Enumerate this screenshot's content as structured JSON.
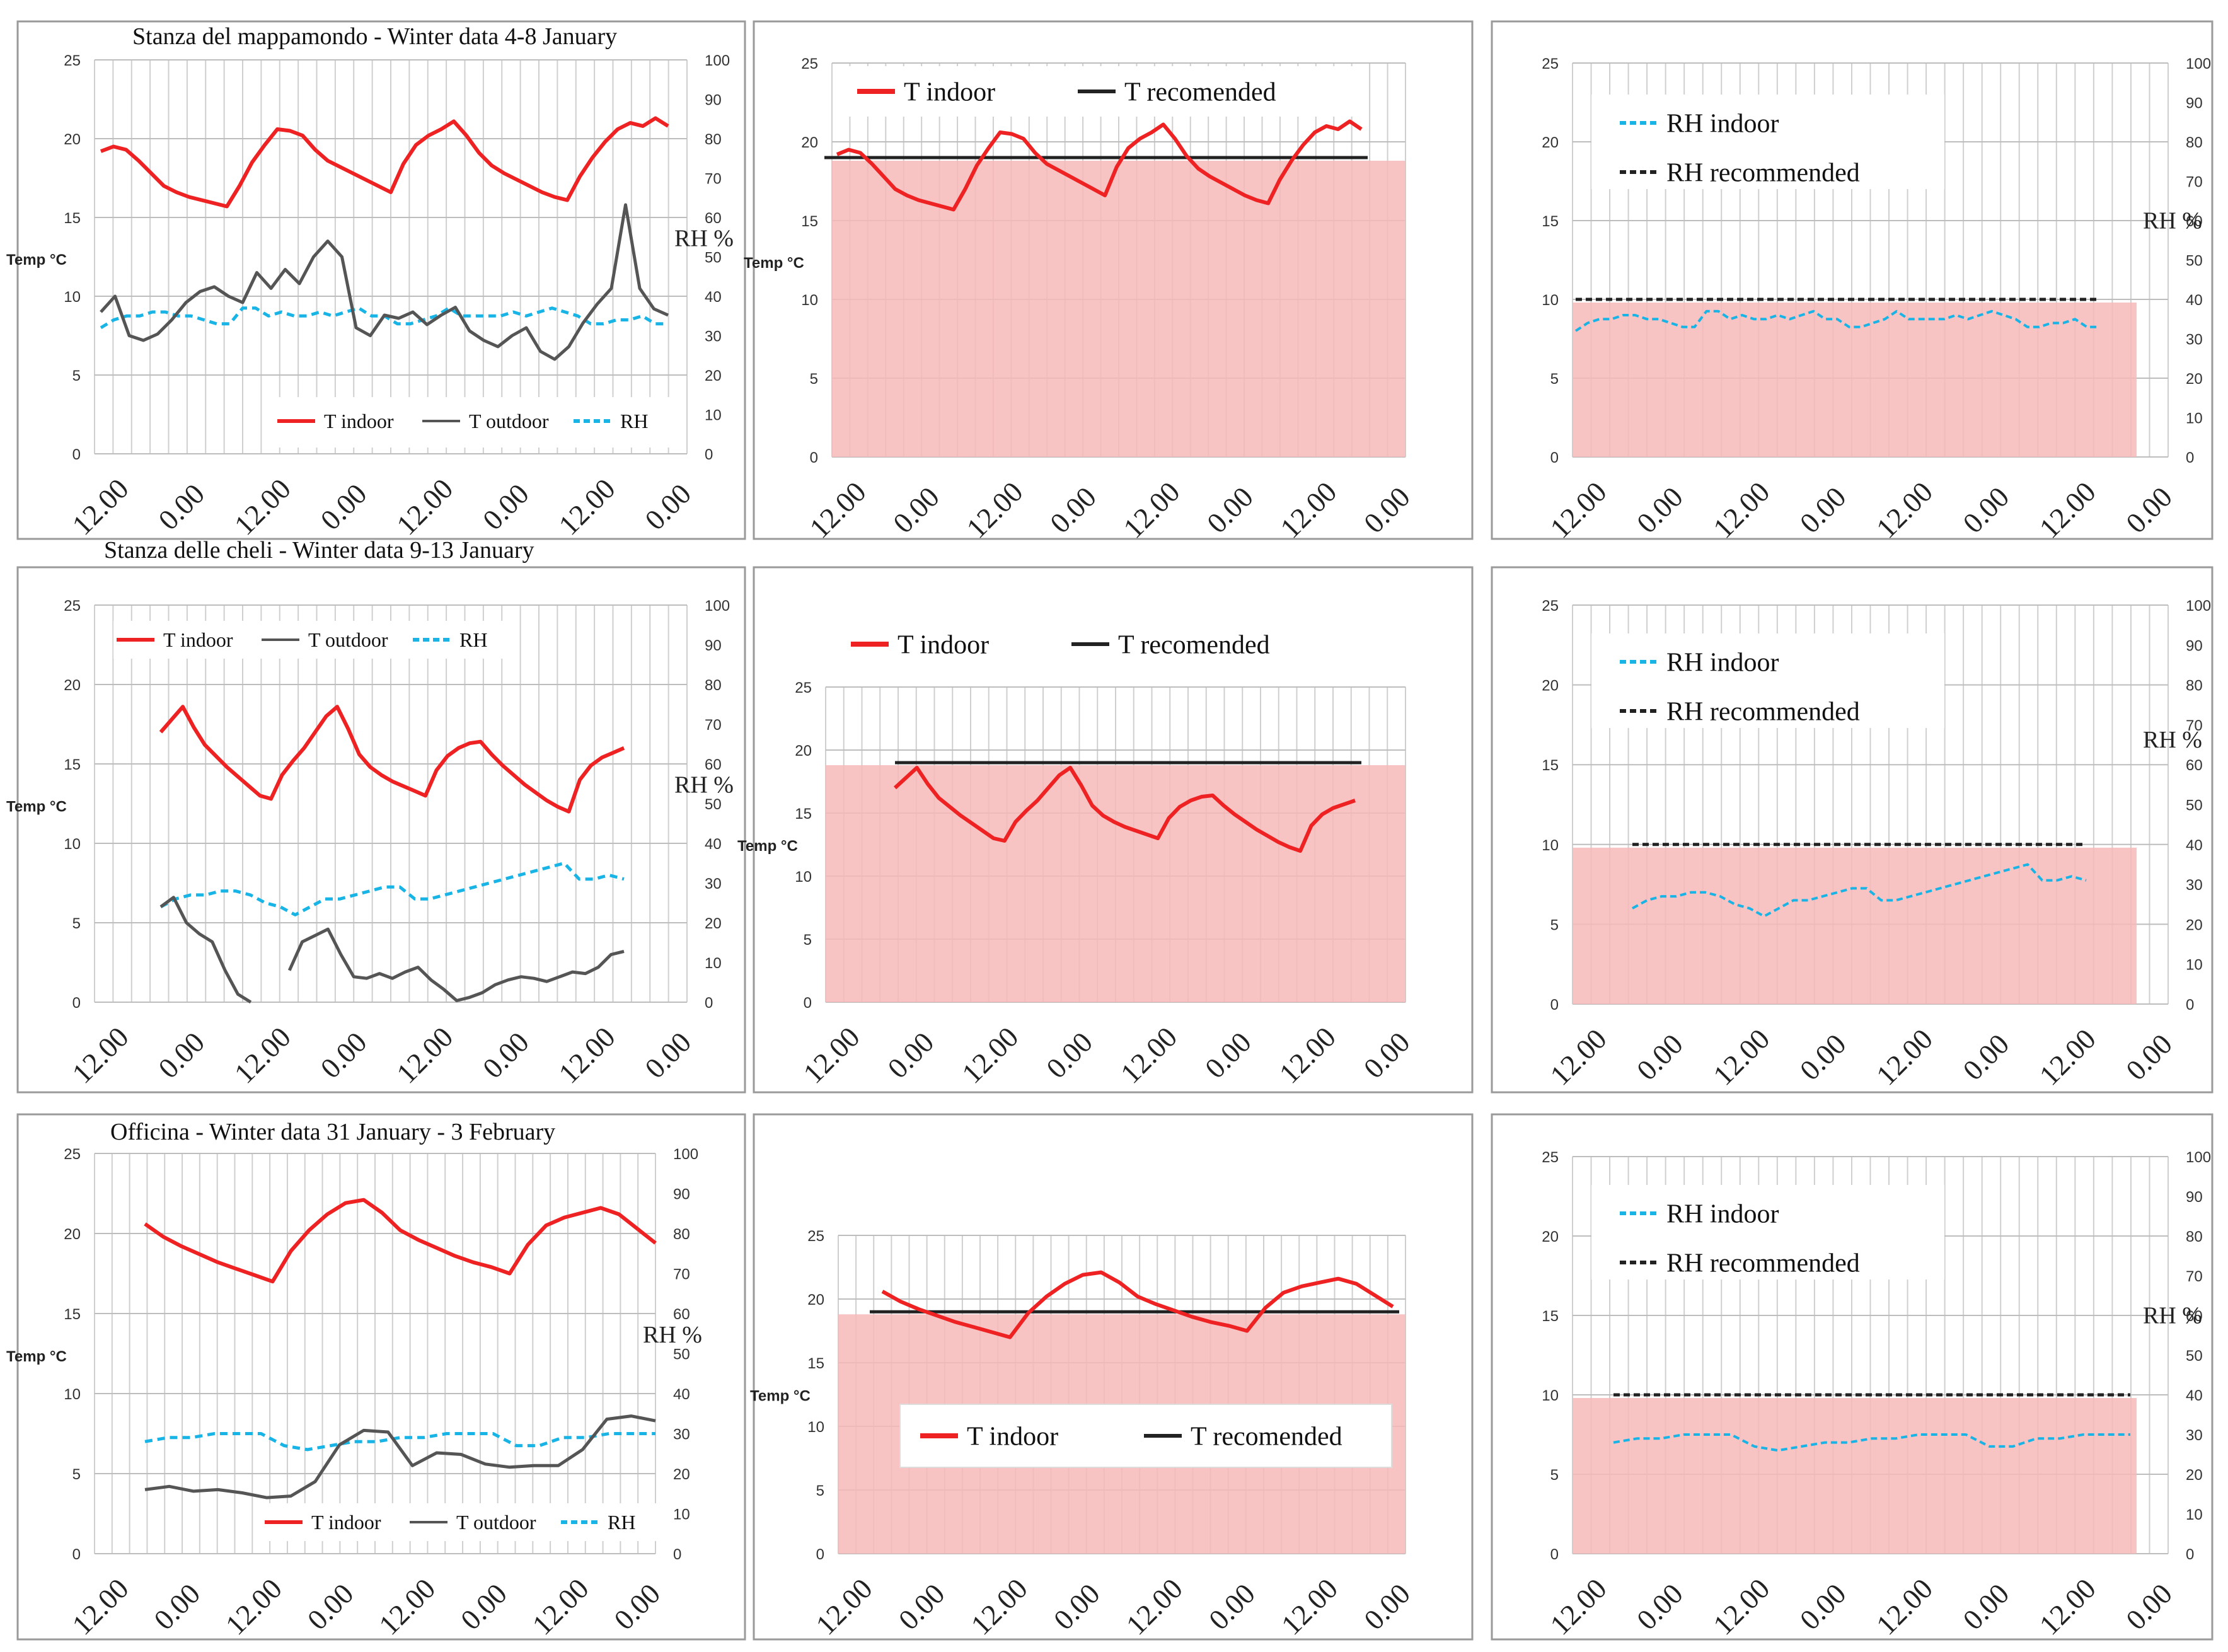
{
  "figure": {
    "colors": {
      "t_indoor": "#ee2222",
      "t_outdoor": "#555555",
      "rh": "#18b4e6",
      "recommended": "#222222",
      "comfort_band": "#f7b8b8",
      "grid": "#cfcfcf"
    }
  },
  "rows": [
    {
      "title": "Stanza del mappamondo - Winter data 4-8 January",
      "xticks": [
        "12.00",
        "0.00",
        "12.00",
        "0.00",
        "12.00",
        "0.00",
        "12.00",
        "0.00"
      ],
      "t_indoor": [
        19.2,
        19.5,
        19.3,
        18.6,
        17.8,
        17.0,
        16.6,
        16.3,
        16.1,
        15.9,
        15.7,
        17.0,
        18.5,
        19.6,
        20.6,
        20.5,
        20.2,
        19.3,
        18.6,
        18.2,
        17.8,
        17.4,
        17.0,
        16.6,
        18.4,
        19.6,
        20.2,
        20.6,
        21.1,
        20.2,
        19.1,
        18.3,
        17.8,
        17.4,
        17.0,
        16.6,
        16.3,
        16.1,
        17.6,
        18.8,
        19.8,
        20.6,
        21.0,
        20.8,
        21.3,
        20.8
      ],
      "t_outdoor": [
        9.0,
        10.0,
        7.5,
        7.2,
        7.6,
        8.5,
        9.6,
        10.3,
        10.6,
        10.0,
        9.6,
        11.5,
        10.5,
        11.7,
        10.8,
        12.5,
        13.5,
        12.5,
        8.0,
        7.5,
        8.8,
        8.6,
        9.0,
        8.2,
        8.8,
        9.3,
        7.8,
        7.2,
        6.8,
        7.5,
        8.0,
        6.5,
        6.0,
        6.8,
        8.3,
        9.5,
        10.5,
        15.8,
        10.5,
        9.2,
        8.8
      ],
      "rh": [
        32,
        34,
        35,
        35,
        36,
        36,
        35,
        35,
        34,
        33,
        33,
        37,
        37,
        35,
        36,
        35,
        35,
        36,
        35,
        36,
        37,
        35,
        35,
        33,
        33,
        34,
        35,
        37,
        35,
        35,
        35,
        35,
        36,
        35,
        36,
        37,
        36,
        35,
        33,
        33,
        34,
        34,
        35,
        33,
        33
      ]
    },
    {
      "title": "Stanza delle cheli - Winter data 9-13 January",
      "xticks": [
        "12.00",
        "0.00",
        "12.00",
        "0.00",
        "12.00",
        "0.00",
        "12.00",
        "0.00"
      ],
      "t_indoor": [
        17.0,
        17.8,
        18.6,
        17.3,
        16.2,
        15.5,
        14.8,
        14.2,
        13.6,
        13.0,
        12.8,
        14.3,
        15.2,
        16.0,
        17.0,
        18.0,
        18.6,
        17.2,
        15.6,
        14.8,
        14.3,
        13.9,
        13.6,
        13.3,
        13.0,
        14.6,
        15.5,
        16.0,
        16.3,
        16.4,
        15.6,
        14.9,
        14.3,
        13.7,
        13.2,
        12.7,
        12.3,
        12.0,
        14.0,
        14.9,
        15.4,
        15.7,
        16.0
      ],
      "t_outdoor": [
        6.0,
        6.6,
        5.0,
        4.3,
        3.8,
        2.0,
        0.5,
        -0.6,
        null,
        null,
        2.0,
        3.8,
        4.2,
        4.6,
        3.0,
        1.6,
        1.5,
        1.8,
        1.5,
        1.9,
        2.2,
        1.4,
        0.8,
        0.1,
        0.3,
        0.6,
        1.1,
        1.4,
        1.6,
        1.5,
        1.3,
        1.6,
        1.9,
        1.8,
        2.2,
        3.0,
        3.2
      ],
      "rh": [
        24,
        26,
        27,
        27,
        28,
        28,
        27,
        25,
        24,
        22,
        24,
        26,
        26,
        27,
        28,
        29,
        29,
        26,
        26,
        27,
        28,
        29,
        30,
        31,
        32,
        33,
        34,
        35,
        31,
        31,
        32,
        31
      ]
    },
    {
      "title": "Officina - Winter data 31 January - 3 February",
      "xticks": [
        "12.00",
        "0.00",
        "12.00",
        "0.00",
        "12.00",
        "0.00",
        "12.00",
        "0.00"
      ],
      "t_indoor": [
        20.6,
        19.8,
        19.2,
        18.7,
        18.2,
        17.8,
        17.4,
        17.0,
        18.9,
        20.2,
        21.2,
        21.9,
        22.1,
        21.3,
        20.2,
        19.6,
        19.1,
        18.6,
        18.2,
        17.9,
        17.5,
        19.3,
        20.5,
        21.0,
        21.3,
        21.6,
        21.2,
        20.3,
        19.4
      ],
      "t_outdoor": [
        4.0,
        4.2,
        3.9,
        4.0,
        3.8,
        3.5,
        3.6,
        4.5,
        6.8,
        7.7,
        7.6,
        5.5,
        6.3,
        6.2,
        5.6,
        5.4,
        5.5,
        5.5,
        6.5,
        8.4,
        8.6,
        8.3
      ],
      "rh": [
        28,
        29,
        29,
        30,
        30,
        30,
        27,
        26,
        27,
        28,
        28,
        29,
        29,
        30,
        30,
        30,
        27,
        27,
        29,
        29,
        30,
        30,
        30
      ]
    }
  ],
  "middle_panel": {
    "legend_t_indoor": "T indoor",
    "legend_t_recommended": "T recomended",
    "t_recommended": 19
  },
  "right_panel": {
    "legend_rh_indoor": "RH indoor",
    "legend_rh_recommended": "RH recommended",
    "rh_recommended": 40
  },
  "left_panel": {
    "legend_t_indoor": "T indoor",
    "legend_t_outdoor": "T outdoor",
    "legend_rh": "RH"
  },
  "axes": {
    "y_left_label": "Temp °C",
    "y_right_label": "RH %",
    "y_left_ticks": [
      "0",
      "5",
      "10",
      "15",
      "20",
      "25"
    ],
    "y_right_ticks": [
      "0",
      "10",
      "20",
      "30",
      "40",
      "50",
      "60",
      "70",
      "80",
      "90",
      "100"
    ],
    "y_left_range": [
      0,
      25
    ],
    "y_right_range": [
      0,
      100
    ]
  },
  "chart_data": [
    {
      "type": "line",
      "title": "Stanza del mappamondo - Winter data 4-8 January",
      "ylabel": "Temp °C",
      "y2label": "RH %",
      "ylim": [
        0,
        25
      ],
      "y2lim": [
        0,
        100
      ],
      "series": [
        "T indoor",
        "T outdoor",
        "RH"
      ],
      "legend": "bottom-right",
      "grid": true
    },
    {
      "type": "line",
      "ylim": [
        0,
        25
      ],
      "series": [
        "T indoor",
        "T recomended"
      ],
      "t_recommended": 19,
      "legend": "top-left",
      "grid": true
    },
    {
      "type": "line",
      "ylim": [
        0,
        25
      ],
      "y2lim": [
        0,
        100
      ],
      "series": [
        "RH indoor",
        "RH recommended"
      ],
      "rh_recommended": 40,
      "legend": "top-left",
      "grid": true
    },
    {
      "type": "line",
      "title": "Stanza delle cheli - Winter data 9-13 January",
      "ylim": [
        0,
        25
      ],
      "y2lim": [
        0,
        100
      ],
      "series": [
        "T indoor",
        "T outdoor",
        "RH"
      ],
      "legend": "top-left",
      "grid": true
    },
    {
      "type": "line",
      "ylim": [
        0,
        25
      ],
      "series": [
        "T indoor",
        "T recomended"
      ],
      "t_recommended": 19,
      "legend": "top-left",
      "grid": true
    },
    {
      "type": "line",
      "ylim": [
        0,
        25
      ],
      "y2lim": [
        0,
        100
      ],
      "series": [
        "RH indoor",
        "RH recommended"
      ],
      "rh_recommended": 40,
      "legend": "top-left",
      "grid": true
    },
    {
      "type": "line",
      "title": "Officina - Winter data 31 January - 3 February",
      "ylim": [
        0,
        25
      ],
      "y2lim": [
        0,
        100
      ],
      "series": [
        "T indoor",
        "T outdoor",
        "RH"
      ],
      "legend": "bottom-right",
      "grid": true
    },
    {
      "type": "line",
      "ylim": [
        0,
        25
      ],
      "series": [
        "T indoor",
        "T recomended"
      ],
      "t_recommended": 19,
      "legend": "bottom-center",
      "grid": true
    },
    {
      "type": "line",
      "ylim": [
        0,
        25
      ],
      "y2lim": [
        0,
        100
      ],
      "series": [
        "RH indoor",
        "RH recommended"
      ],
      "rh_recommended": 40,
      "legend": "top-left",
      "grid": true
    }
  ]
}
